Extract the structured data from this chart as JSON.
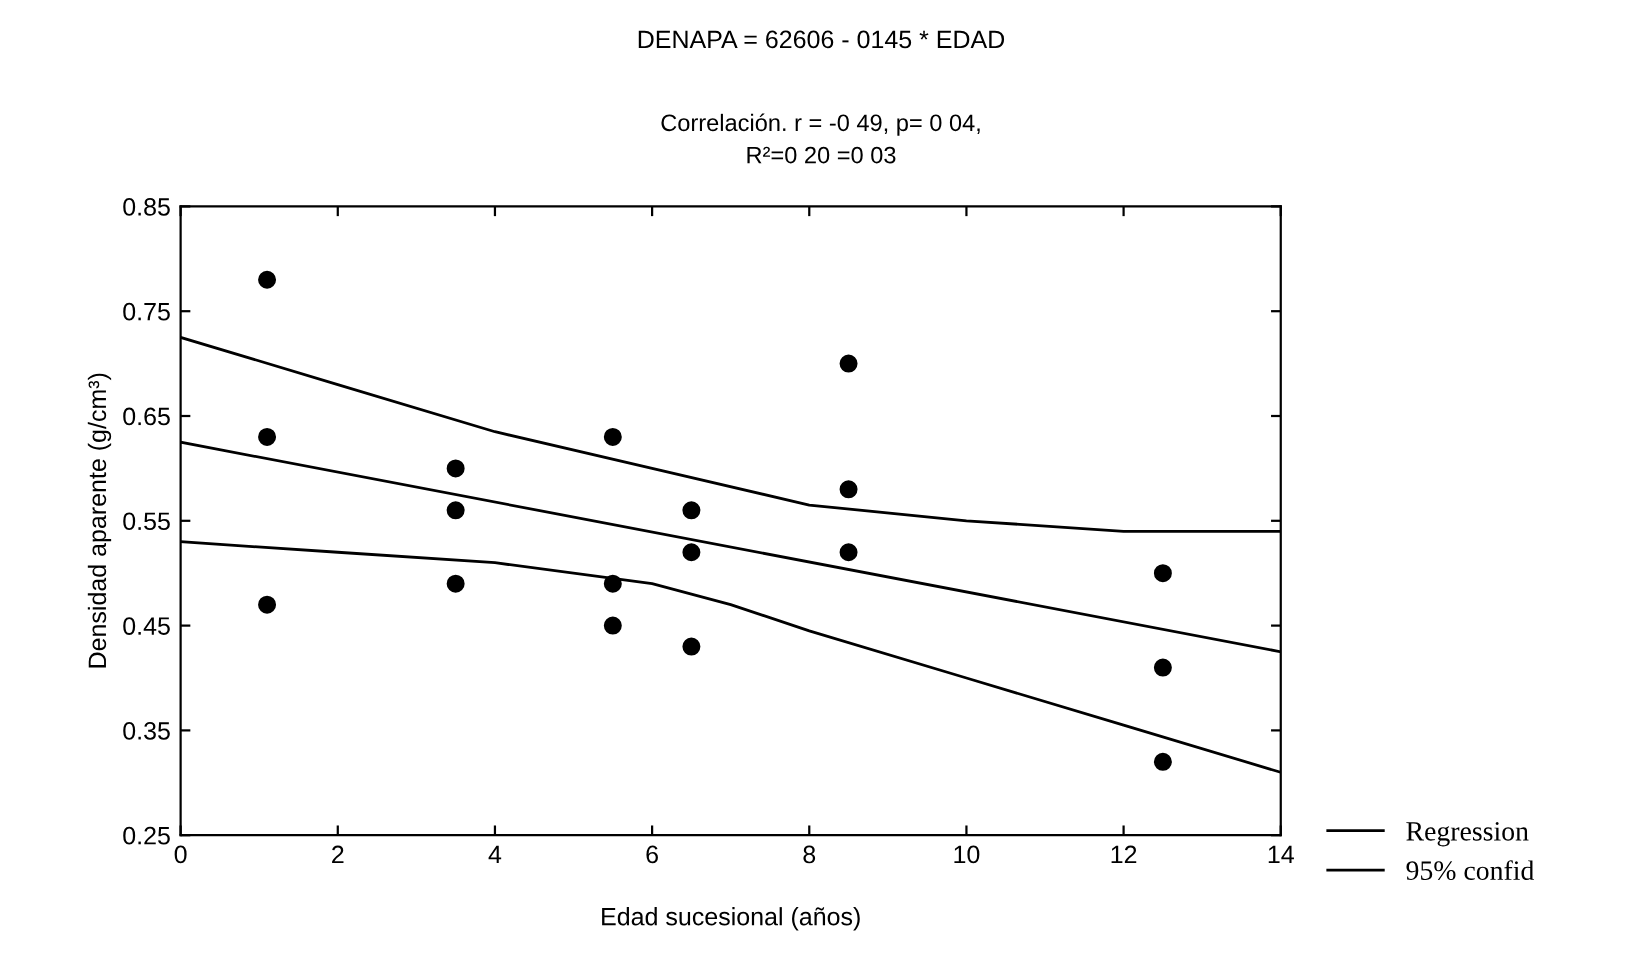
{
  "chart_data": {
    "type": "scatter",
    "title": "DENAPA = 62606 - 0145 * EDAD",
    "subtitle": "Correlación. r = -0 49, p= 0 04,\nR²=0 20 =0 03",
    "xlabel": "Edad sucesional (años)",
    "ylabel": "Densidad aparente (g/cm³)",
    "xlim": [
      0,
      14
    ],
    "xticks": [
      0,
      2,
      4,
      6,
      8,
      10,
      12,
      14
    ],
    "ylim": [
      0.25,
      0.85
    ],
    "yticks": [
      0.25,
      0.35,
      0.45,
      0.55,
      0.65,
      0.75,
      0.85
    ],
    "grid": false,
    "legend": "bottom right",
    "marker": "circle",
    "series": [
      {
        "color": "#000000",
        "x": [
          1.1,
          1.1,
          1.1,
          3.5,
          3.5,
          3.5,
          5.5,
          5.5,
          5.5,
          6.5,
          6.5,
          6.5,
          8.5,
          8.5,
          8.5,
          12.5,
          12.5,
          12.5
        ],
        "values": [
          0.78,
          0.63,
          0.47,
          0.6,
          0.56,
          0.49,
          0.63,
          0.49,
          0.45,
          0.56,
          0.52,
          0.43,
          0.7,
          0.58,
          0.52,
          0.5,
          0.41,
          0.32
        ]
      },
      {
        "type": "line",
        "name": "Regression",
        "color": "#000000",
        "marker": "none",
        "x": [
          0,
          14
        ],
        "values": [
          0.625,
          0.425
        ]
      },
      {
        "type": "line",
        "name": "95% confid",
        "color": "#000000",
        "marker": "none",
        "x": [
          0,
          2,
          4,
          6,
          8,
          10,
          12,
          14
        ],
        "values": [
          0.725,
          0.68,
          0.635,
          0.6,
          0.565,
          0.55,
          0.54,
          0.54
        ]
      },
      {
        "type": "line",
        "color": "#000000",
        "marker": "none",
        "x": [
          0,
          2,
          4,
          6,
          7,
          8,
          10,
          12,
          14
        ],
        "values": [
          0.53,
          0.52,
          0.51,
          0.49,
          0.47,
          0.445,
          0.4,
          0.355,
          0.31
        ]
      }
    ]
  }
}
